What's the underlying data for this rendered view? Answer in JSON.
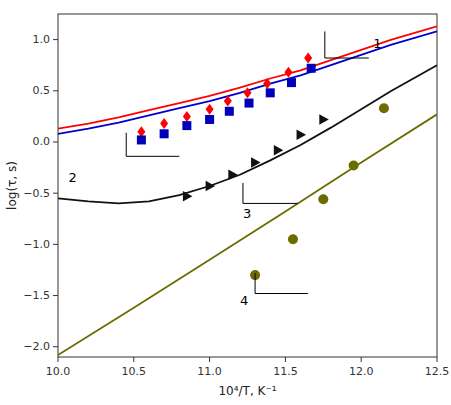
{
  "chart_data": {
    "type": "line",
    "x_label": "10⁴/Τ, K⁻¹",
    "y_label": "log(τ, s)",
    "xlim": [
      10.0,
      12.5
    ],
    "ylim": [
      -2.1,
      1.25
    ],
    "xticks": [
      {
        "value": 10.0,
        "label": "10.0"
      },
      10.5,
      {
        "value": 11.0,
        "label": "11.0"
      },
      11.5,
      {
        "value": 12.0,
        "label": "12.0"
      },
      12.5
    ],
    "yticks": [
      {
        "value": -2.0,
        "label": "−2.0"
      },
      {
        "value": -1.5,
        "label": "−1.5"
      },
      {
        "value": -1.0,
        "label": "−1.0"
      },
      {
        "value": -0.5,
        "label": "−0.5"
      },
      {
        "value": 0.0,
        "label": "0.0"
      },
      0.5,
      {
        "value": 1.0,
        "label": "1.0"
      }
    ],
    "grid": false,
    "series": [
      {
        "type": "line",
        "color": "#FF0000",
        "x": [
          10.0,
          10.2,
          10.4,
          10.6,
          10.8,
          11.0,
          11.2,
          11.4,
          11.6,
          11.8,
          12.0,
          12.2,
          12.5
        ],
        "values": [
          0.13,
          0.18,
          0.24,
          0.31,
          0.38,
          0.45,
          0.53,
          0.62,
          0.7,
          0.8,
          0.9,
          1.0,
          1.13
        ]
      },
      {
        "type": "line",
        "color": "#0000CC",
        "x": [
          10.0,
          10.2,
          10.4,
          10.6,
          10.8,
          11.0,
          11.2,
          11.4,
          11.6,
          11.8,
          12.0,
          12.2,
          12.5
        ],
        "values": [
          0.08,
          0.13,
          0.19,
          0.26,
          0.33,
          0.4,
          0.48,
          0.57,
          0.65,
          0.75,
          0.85,
          0.95,
          1.08
        ]
      },
      {
        "type": "line",
        "color": "#111111",
        "x": [
          10.0,
          10.2,
          10.4,
          10.6,
          10.8,
          11.0,
          11.2,
          11.4,
          11.6,
          11.8,
          12.0,
          12.2,
          12.5
        ],
        "values": [
          -0.55,
          -0.58,
          -0.6,
          -0.58,
          -0.52,
          -0.43,
          -0.32,
          -0.18,
          -0.03,
          0.14,
          0.32,
          0.5,
          0.75
        ]
      },
      {
        "type": "line",
        "color": "#6B6B00",
        "x": [
          10.0,
          10.5,
          11.0,
          11.5,
          12.0,
          12.5
        ],
        "values": [
          -2.08,
          -1.62,
          -1.15,
          -0.68,
          -0.2,
          0.27
        ]
      },
      {
        "type": "scatter",
        "marker": "diamond",
        "color": "#FF0000",
        "x": [
          10.55,
          10.7,
          10.85,
          11.0,
          11.12,
          11.25,
          11.38,
          11.52,
          11.65
        ],
        "values": [
          0.1,
          0.18,
          0.25,
          0.32,
          0.4,
          0.48,
          0.57,
          0.68,
          0.82
        ]
      },
      {
        "type": "scatter",
        "marker": "square",
        "color": "#0000BB",
        "x": [
          10.55,
          10.7,
          10.85,
          11.0,
          11.13,
          11.26,
          11.4,
          11.54,
          11.67
        ],
        "values": [
          0.02,
          0.08,
          0.16,
          0.22,
          0.3,
          0.38,
          0.48,
          0.58,
          0.72
        ]
      },
      {
        "type": "scatter",
        "marker": "triangle-right",
        "color": "#111111",
        "x": [
          10.85,
          11.0,
          11.15,
          11.3,
          11.45,
          11.6,
          11.75
        ],
        "values": [
          -0.53,
          -0.43,
          -0.32,
          -0.2,
          -0.08,
          0.07,
          0.22
        ]
      },
      {
        "type": "scatter",
        "marker": "circle",
        "color": "#6B6B00",
        "x": [
          11.3,
          11.55,
          11.75,
          11.95,
          12.15
        ],
        "values": [
          -1.3,
          -0.95,
          -0.56,
          -0.23,
          0.33
        ]
      }
    ],
    "annotations": [
      {
        "text": "1",
        "x": 12.08,
        "y": 0.96,
        "bracket_x": [
          11.76,
          11.76,
          12.05
        ],
        "bracket_y": [
          1.08,
          0.82,
          0.82
        ]
      },
      {
        "text": "2",
        "x": 10.07,
        "y": -0.35,
        "bracket_x": [
          10.45,
          10.45,
          10.8
        ],
        "bracket_y": [
          0.09,
          -0.14,
          -0.14
        ]
      },
      {
        "text": "3",
        "x": 11.22,
        "y": -0.7,
        "bracket_x": [
          11.22,
          11.22,
          11.58
        ],
        "bracket_y": [
          -0.4,
          -0.6,
          -0.6
        ]
      },
      {
        "text": "4",
        "x": 11.2,
        "y": -1.55,
        "bracket_x": [
          11.3,
          11.3,
          11.65
        ],
        "bracket_y": [
          -1.28,
          -1.48,
          -1.48
        ]
      }
    ]
  }
}
